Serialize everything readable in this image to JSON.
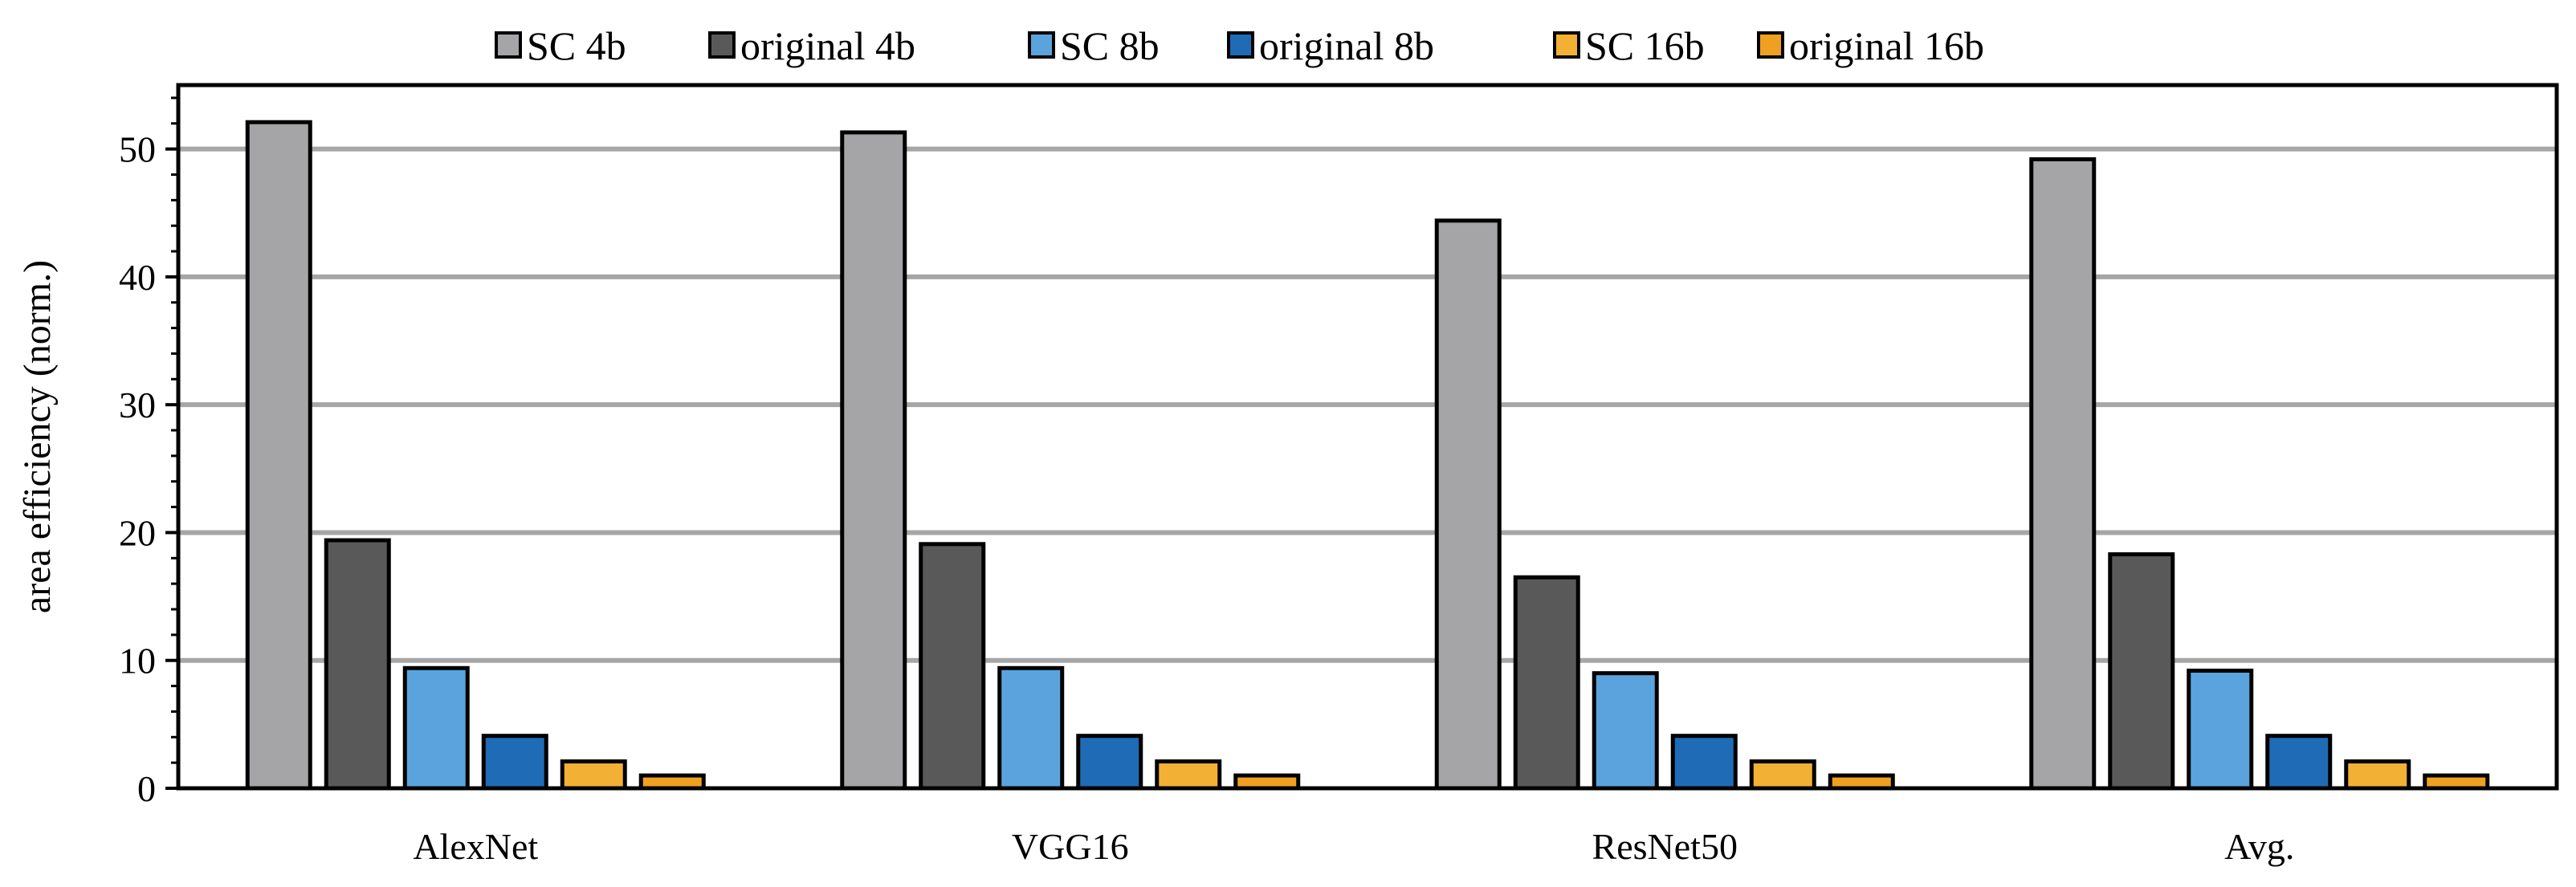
{
  "chart_data": {
    "type": "bar",
    "title": "",
    "xlabel": "",
    "ylabel": "area efficiency (norm.)",
    "ylim": [
      0,
      55
    ],
    "yticks": [
      0,
      10,
      20,
      30,
      40,
      50
    ],
    "grid": true,
    "legend_position": "top",
    "categories": [
      "AlexNet",
      "VGG16",
      "ResNet50",
      "Avg."
    ],
    "series": [
      {
        "name": "SC 4b",
        "color": "#A5A5A8",
        "values": [
          52.1,
          51.3,
          44.4,
          49.2
        ]
      },
      {
        "name": "original 4b",
        "color": "#595959",
        "values": [
          19.4,
          19.1,
          16.5,
          18.3
        ]
      },
      {
        "name": "SC 8b",
        "color": "#5BA3DC",
        "values": [
          9.4,
          9.4,
          9.0,
          9.2
        ]
      },
      {
        "name": "original 8b",
        "color": "#1F6BB5",
        "values": [
          4.1,
          4.1,
          4.1,
          4.1
        ]
      },
      {
        "name": "SC 16b",
        "color": "#F2B134",
        "values": [
          2.1,
          2.1,
          2.1,
          2.1
        ]
      },
      {
        "name": "original 16b",
        "color": "#F0A020",
        "values": [
          1.0,
          1.0,
          1.0,
          1.0
        ]
      }
    ]
  }
}
